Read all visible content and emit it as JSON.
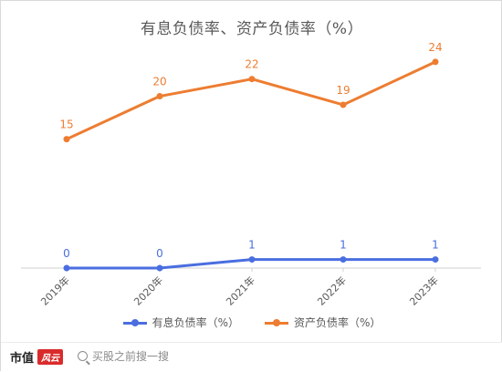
{
  "chart_data": {
    "type": "line",
    "title": "有息负债率、资产负债率（%）",
    "categories": [
      "2019年",
      "2020年",
      "2021年",
      "2022年",
      "2023年"
    ],
    "series": [
      {
        "name": "有息负债率（%）",
        "color": "#4a6ee0",
        "values": [
          0,
          0,
          1,
          1,
          1
        ]
      },
      {
        "name": "资产负债率（%）",
        "color": "#ed7d31",
        "values": [
          15,
          20,
          22,
          19,
          24
        ]
      }
    ],
    "ylim": [
      0,
      26
    ],
    "grid": false,
    "legend_position": "bottom"
  },
  "footer": {
    "brand_text": "市值",
    "brand_mark": "风云",
    "search_text": "买股之前搜一搜",
    "search_icon": "search-icon"
  }
}
